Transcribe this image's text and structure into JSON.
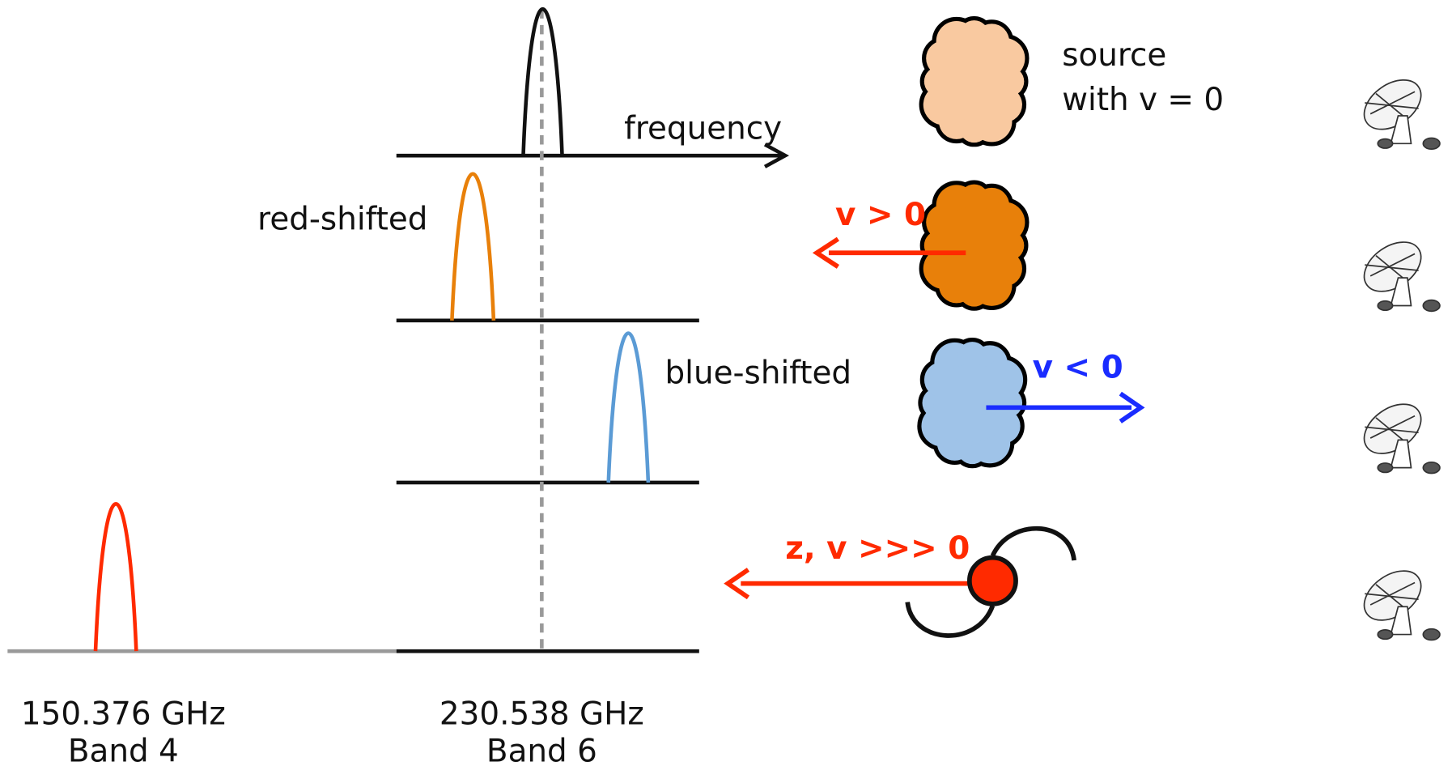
{
  "frequency_axis": {
    "label": "frequency"
  },
  "spectra": [
    {
      "label": "red-shifted"
    },
    {
      "label": "blue-shifted"
    }
  ],
  "sources": [
    {
      "label": "source",
      "sublabel": "with v = 0"
    },
    {
      "label": "v > 0"
    },
    {
      "label": "v < 0"
    },
    {
      "label": "z, v >>> 0"
    }
  ],
  "bands": [
    {
      "frequency": "150.376 GHz",
      "name": "Band 4"
    },
    {
      "frequency": "230.538 GHz",
      "name": "Band 6"
    }
  ]
}
